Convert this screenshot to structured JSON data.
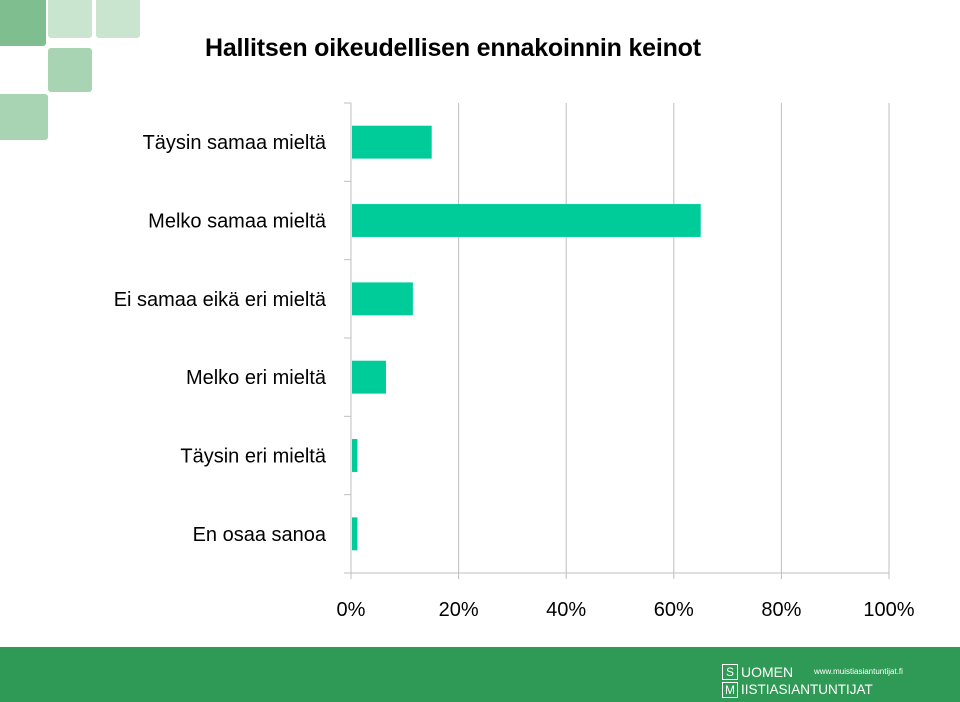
{
  "title": "Hallitsen oikeudellisen ennakoinnin keinot",
  "colors": {
    "bar": "#00cc99",
    "footer": "#2f9a55",
    "grid": "#bfbfbf",
    "deco": [
      "#7fbf8f",
      "#a9d4b3",
      "#c9e4cf"
    ]
  },
  "chart_data": {
    "type": "bar",
    "orientation": "horizontal",
    "categories": [
      "Täysin samaa mieltä",
      "Melko samaa mieltä",
      "Ei samaa eikä eri mieltä",
      "Melko eri mieltä",
      "Täysin eri mieltä",
      "En osaa sanoa"
    ],
    "values": [
      15,
      65,
      11.5,
      6.5,
      1.2,
      1.2
    ],
    "xlim": [
      0,
      100
    ],
    "xticks": [
      "0%",
      "20%",
      "40%",
      "60%",
      "80%",
      "100%"
    ],
    "grid": true,
    "legend": "none"
  },
  "footer": {
    "logo_top_letter": "S",
    "logo_top_word": "UOMEN",
    "logo_bottom_letter": "M",
    "logo_bottom_word": "IISTIASIANTUNTIJAT",
    "logo_url": "www.muistiasiantuntijat.fi"
  }
}
